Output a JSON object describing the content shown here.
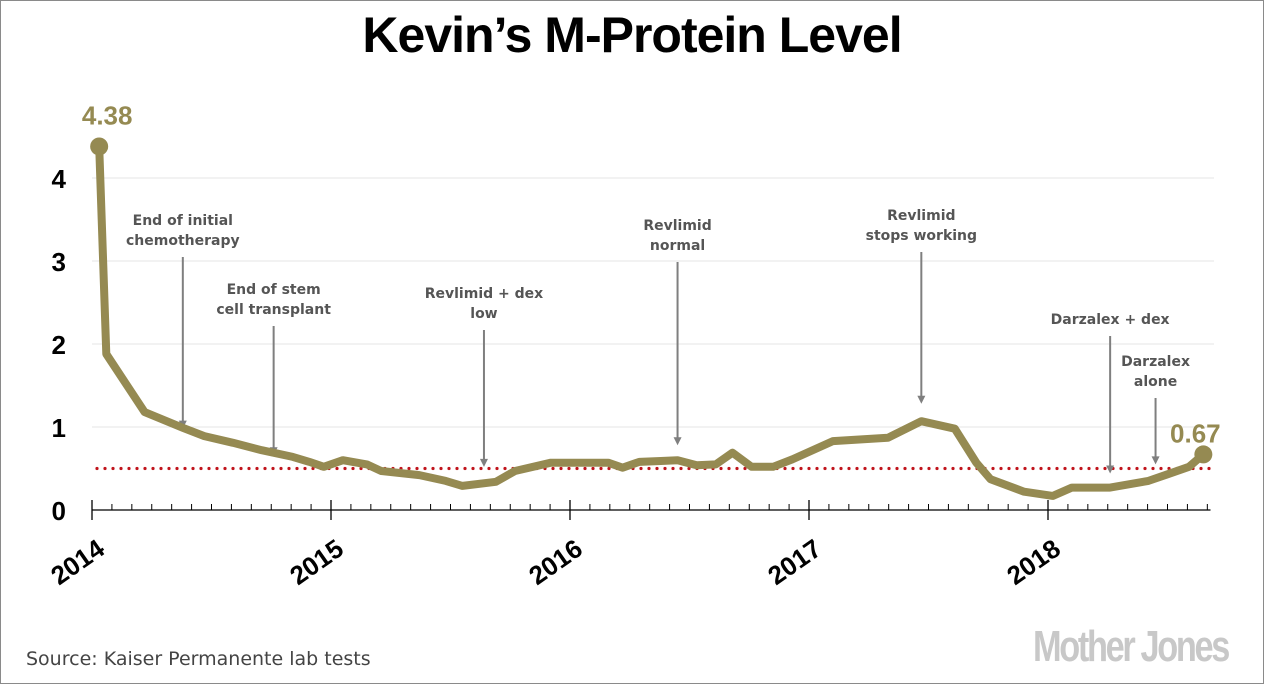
{
  "chart_data": {
    "type": "line",
    "title": "Kevin’s M-Protein Level",
    "xlabel": "",
    "ylabel": "",
    "xlim": [
      2014,
      2018.68
    ],
    "ylim": [
      0,
      4.6
    ],
    "grid": true,
    "x_ticks": [
      2014,
      2015,
      2016,
      2017,
      2018
    ],
    "x_tick_labels": [
      "2014",
      "2015",
      "2016",
      "2017",
      "2018"
    ],
    "y_ticks": [
      0,
      1,
      2,
      3,
      4
    ],
    "y_tick_labels": [
      "0",
      "1",
      "2",
      "3",
      "4"
    ],
    "minor_x_ticks_per_year": 12,
    "series": [
      {
        "name": "M-protein",
        "color": "#958a52",
        "x": [
          2014.03,
          2014.06,
          2014.22,
          2014.38,
          2014.47,
          2014.59,
          2014.71,
          2014.84,
          2014.91,
          2014.97,
          2015.05,
          2015.15,
          2015.21,
          2015.37,
          2015.48,
          2015.55,
          2015.69,
          2015.77,
          2015.92,
          2016.16,
          2016.22,
          2016.29,
          2016.38,
          2016.45,
          2016.53,
          2016.61,
          2016.68,
          2016.76,
          2016.85,
          2016.93,
          2017.1,
          2017.33,
          2017.47,
          2017.61,
          2017.7,
          2017.76,
          2017.9,
          2018.02,
          2018.1,
          2018.26,
          2018.42,
          2018.5,
          2018.59,
          2018.65
        ],
        "y": [
          4.38,
          1.88,
          1.18,
          0.99,
          0.89,
          0.81,
          0.72,
          0.64,
          0.58,
          0.52,
          0.6,
          0.55,
          0.47,
          0.42,
          0.35,
          0.29,
          0.34,
          0.47,
          0.57,
          0.57,
          0.51,
          0.58,
          0.59,
          0.6,
          0.54,
          0.55,
          0.69,
          0.52,
          0.52,
          0.61,
          0.83,
          0.87,
          1.07,
          0.98,
          0.57,
          0.37,
          0.22,
          0.17,
          0.27,
          0.27,
          0.35,
          0.43,
          0.52,
          0.67
        ]
      }
    ],
    "reference_line": {
      "value": 0.5,
      "style": "dotted",
      "color": "#c0141c"
    },
    "point_labels": [
      {
        "x": 2014.03,
        "y": 4.38,
        "text": "4.38"
      },
      {
        "x": 2018.65,
        "y": 0.67,
        "text": "0.67"
      }
    ],
    "annotations": [
      {
        "lines": [
          "End of initial",
          "chemotherapy"
        ],
        "x": 2014.38,
        "arrow_to": 0.98
      },
      {
        "lines": [
          "End of stem",
          "cell transplant"
        ],
        "x": 2014.76,
        "arrow_to": 0.66
      },
      {
        "lines": [
          "Revlimid + dex",
          "low"
        ],
        "x": 2015.64,
        "arrow_to": 0.52
      },
      {
        "lines": [
          "Revlimid",
          "normal"
        ],
        "x": 2016.45,
        "arrow_to": 0.78
      },
      {
        "lines": [
          "Revlimid",
          "stops working"
        ],
        "x": 2017.47,
        "arrow_to": 1.28
      },
      {
        "lines": [
          "Darzalex + dex"
        ],
        "x": 2018.26,
        "arrow_to": 0.44
      },
      {
        "lines": [
          "Darzalex",
          "alone"
        ],
        "x": 2018.45,
        "arrow_to": 0.55
      }
    ],
    "colors": {
      "line": "#958a52",
      "reference": "#c0141c",
      "annotation": "#555555",
      "arrow": "#7f7f7f",
      "grid": "#e6e6e6",
      "axis": "#000000"
    }
  },
  "footer": {
    "source": "Source: Kaiser Permanente lab tests",
    "logo": "Mother Jones"
  }
}
